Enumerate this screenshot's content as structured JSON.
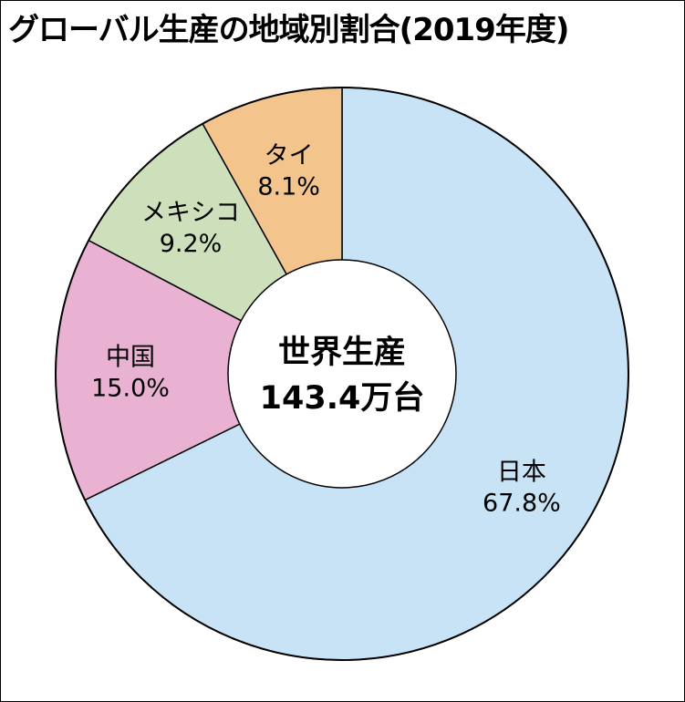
{
  "chart_data": {
    "type": "pie",
    "title": "グローバル生産の地域別割合(2019年度)",
    "center_label": {
      "line1": "世界生産",
      "line2": "143.4万台"
    },
    "slices": [
      {
        "name": "日本",
        "value": 67.8,
        "value_label": "67.8%",
        "color": "#c9e3f6"
      },
      {
        "name": "中国",
        "value": 15.0,
        "value_label": "15.0%",
        "color": "#e9b2d3"
      },
      {
        "name": "メキシコ",
        "value": 9.2,
        "value_label": "9.2%",
        "color": "#cde0bb"
      },
      {
        "name": "タイ",
        "value": 8.1,
        "value_label": "8.1%",
        "color": "#f3c48c"
      }
    ],
    "donut": true,
    "start": "12 o'clock",
    "direction": "clockwise",
    "legend": "none"
  }
}
